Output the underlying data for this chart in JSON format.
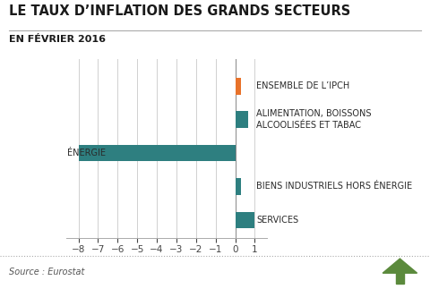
{
  "title": "LE TAUX D’INFLATION DES GRANDS SECTEURS",
  "subtitle": "EN FÉVRIER 2016",
  "values": [
    0.3,
    0.65,
    -8.0,
    0.3,
    1.0
  ],
  "bar_colors": [
    "#E8722A",
    "#2E7F80",
    "#2E7F80",
    "#2E7F80",
    "#2E7F80"
  ],
  "xlim": [
    -8.6,
    1.6
  ],
  "xticks": [
    -8,
    -7,
    -6,
    -5,
    -4,
    -3,
    -2,
    -1,
    0,
    1
  ],
  "background_color": "#FFFFFF",
  "grid_color": "#D0D0D0",
  "title_fontsize": 10.5,
  "subtitle_fontsize": 8,
  "label_fontsize": 7,
  "tick_fontsize": 7.5,
  "source_text": "Source : Eurostat",
  "bar_height": 0.5,
  "teal_color": "#2E7F80",
  "label_right": [
    "ENSEMBLE DE L’IPCH",
    "ALIMENTATION, BOISSONS\nALCOOLISÉES ET TABAC",
    "",
    "BIENS INDUSTRIELS HORS ÉNERGIE",
    "SERVICES"
  ],
  "energie_label": "ÉNERGIE"
}
